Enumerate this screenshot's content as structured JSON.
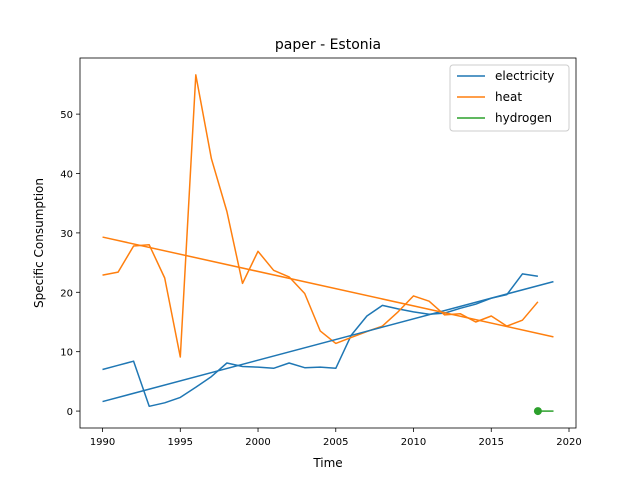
{
  "chart_data": {
    "type": "line",
    "title": "paper - Estonia",
    "xlabel": "Time",
    "ylabel": "Specific Consumption",
    "xlim": [
      1988.55,
      2020.45
    ],
    "ylim": [
      -2.85,
      59.45
    ],
    "xticks": [
      1990,
      1995,
      2000,
      2005,
      2010,
      2015,
      2020
    ],
    "yticks": [
      0,
      10,
      20,
      30,
      40,
      50
    ],
    "grid": false,
    "legend_position": "top-right",
    "series": [
      {
        "name": "electricity",
        "color": "#1f77b4",
        "x": [
          1990,
          1991,
          1992,
          1993,
          1994,
          1995,
          1996,
          1997,
          1998,
          1999,
          2000,
          2001,
          2002,
          2003,
          2004,
          2005,
          2006,
          2007,
          2008,
          2009,
          2010,
          2011,
          2012,
          2013,
          2014,
          2015,
          2016,
          2017,
          2018
        ],
        "y": [
          7.0,
          7.7,
          8.4,
          0.8,
          1.4,
          2.3,
          4.0,
          5.8,
          8.1,
          7.5,
          7.4,
          7.2,
          8.1,
          7.3,
          7.4,
          7.2,
          12.8,
          16.0,
          17.8,
          17.2,
          16.7,
          16.3,
          16.5,
          17.3,
          18.0,
          19.0,
          19.6,
          23.1,
          22.7
        ]
      },
      {
        "name": "heat",
        "color": "#ff7f0e",
        "x": [
          1990,
          1991,
          1992,
          1993,
          1994,
          1995,
          1996,
          1997,
          1998,
          1999,
          2000,
          2001,
          2002,
          2003,
          2004,
          2005,
          2006,
          2007,
          2008,
          2009,
          2010,
          2011,
          2012,
          2013,
          2014,
          2015,
          2016,
          2017,
          2018
        ],
        "y": [
          22.9,
          23.4,
          27.8,
          28.0,
          22.4,
          9.1,
          56.6,
          42.5,
          33.6,
          21.5,
          26.9,
          23.7,
          22.6,
          19.8,
          13.5,
          11.4,
          12.4,
          13.4,
          14.3,
          16.7,
          19.4,
          18.5,
          16.2,
          16.4,
          15.0,
          16.0,
          14.3,
          15.3,
          18.4
        ]
      },
      {
        "name": "hydrogen",
        "color": "#2ca02c",
        "x": [
          2018,
          2019
        ],
        "y": [
          0.0,
          0.0
        ],
        "marker_x": 2018,
        "marker_y": 0.0
      }
    ],
    "trendlines": [
      {
        "series": "electricity",
        "color": "#1f77b4",
        "x": [
          1990,
          2019
        ],
        "y": [
          1.6,
          21.8
        ]
      },
      {
        "series": "heat",
        "color": "#ff7f0e",
        "x": [
          1990,
          2019
        ],
        "y": [
          29.3,
          12.5
        ]
      }
    ]
  }
}
